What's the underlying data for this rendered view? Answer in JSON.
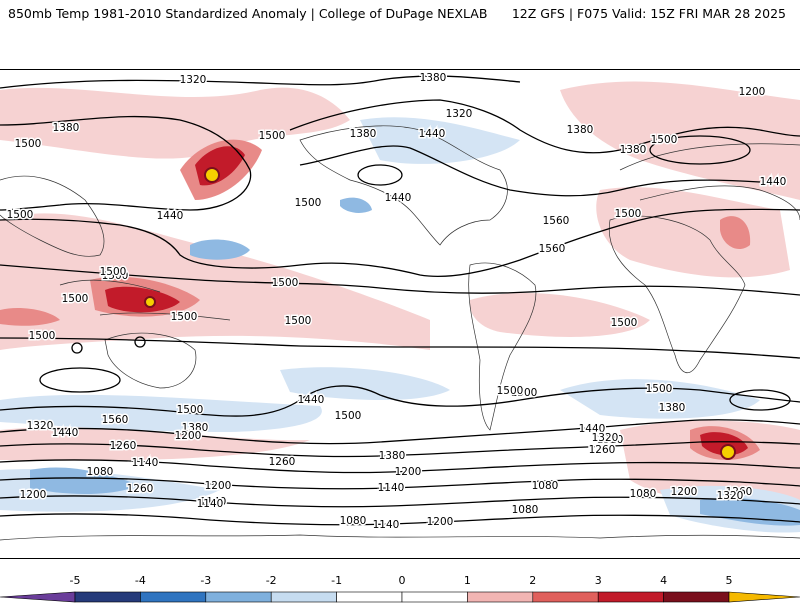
{
  "header": {
    "left": "850mb Temp 1981-2010 Standardized Anomaly | College of DuPage NEXLAB",
    "right": "12Z GFS | F075 Valid: 15Z FRI MAR 28 2025"
  },
  "map": {
    "field": "850mb temperature standardized anomaly",
    "contour_labels": [
      {
        "text": "1320"
      },
      {
        "text": "1380"
      },
      {
        "text": "1380"
      },
      {
        "text": "1320"
      },
      {
        "text": "1380"
      },
      {
        "text": "1200"
      },
      {
        "text": "1500"
      },
      {
        "text": "1380"
      },
      {
        "text": "1440"
      },
      {
        "text": "1500"
      },
      {
        "text": "1500"
      },
      {
        "text": "1380"
      },
      {
        "text": "1440"
      },
      {
        "text": "1440"
      },
      {
        "text": "1500"
      },
      {
        "text": "1440"
      },
      {
        "text": "1500"
      },
      {
        "text": "1500"
      },
      {
        "text": "1560"
      },
      {
        "text": "1500"
      },
      {
        "text": "1560"
      },
      {
        "text": "1500"
      },
      {
        "text": "1500"
      },
      {
        "text": "1500"
      },
      {
        "text": "1500"
      },
      {
        "text": "1500"
      },
      {
        "text": "1500"
      },
      {
        "text": "1500"
      },
      {
        "text": "1500"
      },
      {
        "text": "1500"
      },
      {
        "text": "1500"
      },
      {
        "text": "1380"
      },
      {
        "text": "1560"
      },
      {
        "text": "1500"
      },
      {
        "text": "1440"
      },
      {
        "text": "1500"
      },
      {
        "text": "1320"
      },
      {
        "text": "1380"
      },
      {
        "text": "1440"
      },
      {
        "text": "1200"
      },
      {
        "text": "1260"
      },
      {
        "text": "1320"
      },
      {
        "text": "1260"
      },
      {
        "text": "1380"
      },
      {
        "text": "1440"
      },
      {
        "text": "1320"
      },
      {
        "text": "1260"
      },
      {
        "text": "1140"
      },
      {
        "text": "1200"
      },
      {
        "text": "1080"
      },
      {
        "text": "1080"
      },
      {
        "text": "1260"
      },
      {
        "text": "1140"
      },
      {
        "text": "1140"
      },
      {
        "text": "1200"
      },
      {
        "text": "1080"
      },
      {
        "text": "1140"
      },
      {
        "text": "1200"
      },
      {
        "text": "1080"
      },
      {
        "text": "1200"
      },
      {
        "text": "1260"
      },
      {
        "text": "1320"
      },
      {
        "text": "1080"
      },
      {
        "text": "1140"
      },
      {
        "text": "1200"
      }
    ]
  },
  "legend": {
    "ticks": [
      "-5",
      "-4",
      "-3",
      "-2",
      "-1",
      "0",
      "1",
      "2",
      "3",
      "4",
      "5"
    ],
    "colors": [
      "#6a3d9a",
      "#253a7a",
      "#2f74c0",
      "#7fb0dd",
      "#c6dcf0",
      "#ffffff",
      "#ffffff",
      "#f2b5b3",
      "#e0605c",
      "#c21b2a",
      "#7a0f1c",
      "#f5b900"
    ]
  },
  "colors": {
    "warm_light": "#f6d2d2",
    "warm_mid": "#e88a88",
    "warm_strong": "#c21b2a",
    "warm_extreme": "#f5d000",
    "cold_light": "#d4e4f4",
    "cold_mid": "#8fb9e2",
    "cold_strong": "#3a7fc4"
  }
}
